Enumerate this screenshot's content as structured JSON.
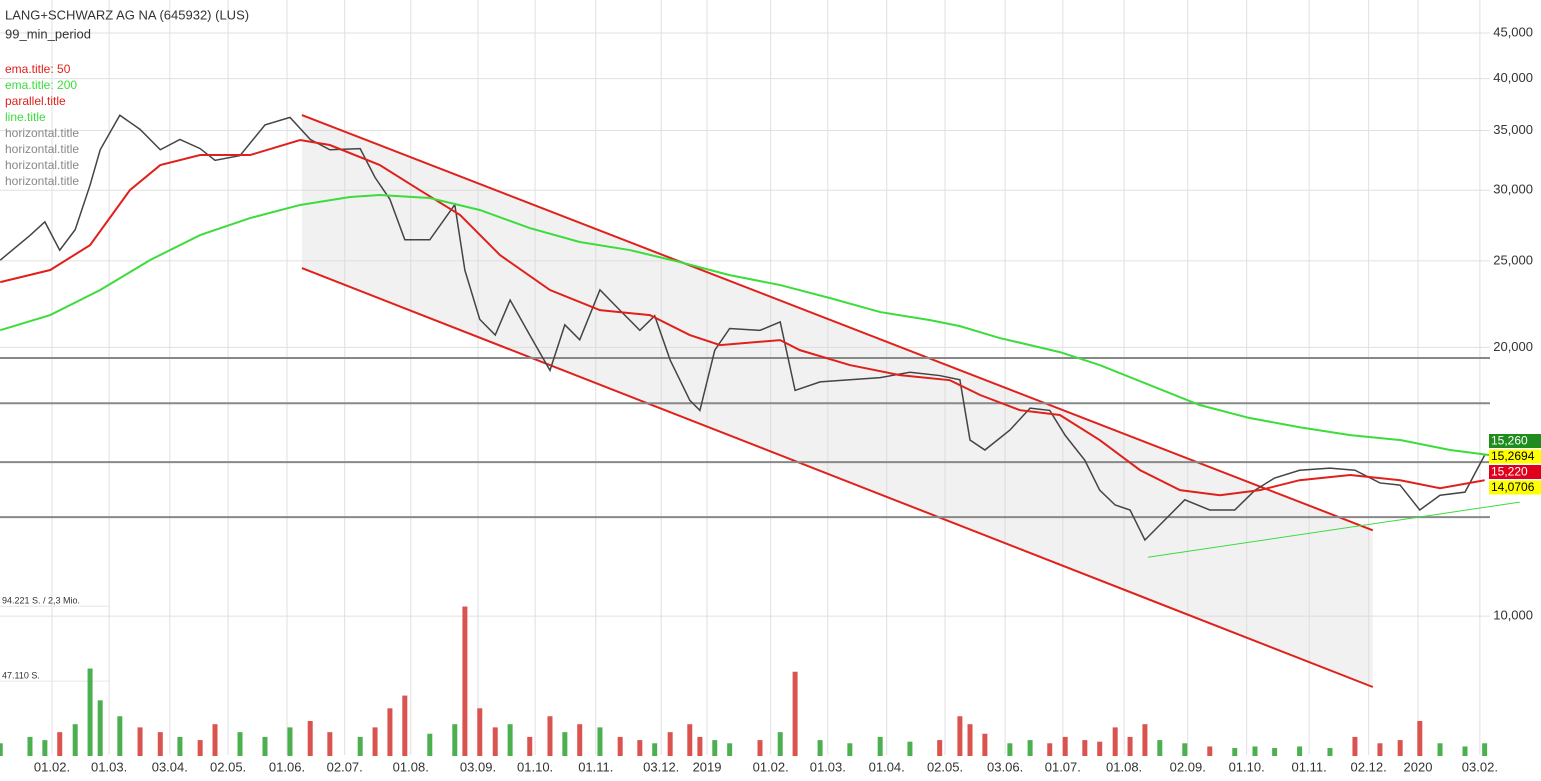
{
  "chart_data": {
    "type": "line",
    "title": "LANG+SCHWARZ AG NA (645932) (LUS)",
    "subtitle": "99_min_period",
    "log": true,
    "grid": true,
    "xlim": [
      0.126,
      25.17
    ],
    "ylim": [
      6990,
      49000
    ],
    "yticks": [
      {
        "value": 10000,
        "label": "10,000"
      },
      {
        "value": 20000,
        "label": "20,000"
      },
      {
        "value": 25000,
        "label": "25,000"
      },
      {
        "value": 30000,
        "label": "30,000"
      },
      {
        "value": 35000,
        "label": "35,000"
      },
      {
        "value": 40000,
        "label": "40,000"
      },
      {
        "value": 45000,
        "label": "45,000"
      }
    ],
    "xticks": [
      {
        "value": 1,
        "label": "01.02."
      },
      {
        "value": 1.96,
        "label": "01.03."
      },
      {
        "value": 2.98,
        "label": "03.04."
      },
      {
        "value": 3.96,
        "label": "02.05."
      },
      {
        "value": 4.95,
        "label": "01.06."
      },
      {
        "value": 5.92,
        "label": "02.07."
      },
      {
        "value": 7.03,
        "label": "01.08."
      },
      {
        "value": 8.16,
        "label": "03.09."
      },
      {
        "value": 9.12,
        "label": "01.10."
      },
      {
        "value": 10.14,
        "label": "01.11."
      },
      {
        "value": 11.24,
        "label": "03.12."
      },
      {
        "value": 12.01,
        "label": "2019"
      },
      {
        "value": 13.08,
        "label": "01.02."
      },
      {
        "value": 14.04,
        "label": "01.03."
      },
      {
        "value": 15.03,
        "label": "01.04."
      },
      {
        "value": 16.01,
        "label": "02.05."
      },
      {
        "value": 17.02,
        "label": "03.06."
      },
      {
        "value": 17.99,
        "label": "01.07."
      },
      {
        "value": 19.02,
        "label": "01.08."
      },
      {
        "value": 20.09,
        "label": "02.09."
      },
      {
        "value": 21.08,
        "label": "01.10."
      },
      {
        "value": 22.13,
        "label": "01.11."
      },
      {
        "value": 23.13,
        "label": "02.12."
      },
      {
        "value": 23.96,
        "label": "2020"
      },
      {
        "value": 25.0,
        "label": "03.02."
      }
    ],
    "price": {
      "color": "#444444",
      "x": [
        0.13,
        0.63,
        0.88,
        1.13,
        1.39,
        1.64,
        1.81,
        2.14,
        2.48,
        2.82,
        3.15,
        3.49,
        3.74,
        4.16,
        4.58,
        5.0,
        5.34,
        5.67,
        6.18,
        6.43,
        6.68,
        6.93,
        7.35,
        7.77,
        7.94,
        8.19,
        8.45,
        8.7,
        9.03,
        9.37,
        9.62,
        9.87,
        10.21,
        10.55,
        10.88,
        11.13,
        11.39,
        11.72,
        11.89,
        12.14,
        12.39,
        12.9,
        13.24,
        13.49,
        13.91,
        14.41,
        14.92,
        15.42,
        15.92,
        16.26,
        16.43,
        16.68,
        17.1,
        17.44,
        17.77,
        18.03,
        18.36,
        18.61,
        18.87,
        19.12,
        19.37,
        19.62,
        20.04,
        20.46,
        20.88,
        21.22,
        21.55,
        21.97,
        22.48,
        22.9,
        23.32,
        23.66,
        23.99,
        24.33,
        24.75,
        25.08
      ],
      "values": [
        25050,
        26700,
        27650,
        25700,
        27100,
        30400,
        33300,
        36400,
        35100,
        33300,
        34200,
        33400,
        32400,
        32800,
        35500,
        36200,
        34200,
        33300,
        33400,
        31000,
        29300,
        26400,
        26400,
        28900,
        24400,
        21500,
        20650,
        22600,
        20650,
        18850,
        21200,
        20400,
        23200,
        22000,
        20900,
        21700,
        19360,
        17450,
        17000,
        19860,
        21000,
        20900,
        21360,
        17900,
        18300,
        18400,
        18500,
        18760,
        18600,
        18400,
        15750,
        15350,
        16160,
        17100,
        17000,
        15940,
        14950,
        13840,
        13320,
        13150,
        12170,
        12650,
        13500,
        13150,
        13150,
        13840,
        14280,
        14570,
        14650,
        14570,
        14100,
        14020,
        13150,
        13660,
        13770,
        15150
      ]
    },
    "volume": {
      "color_up": "#4caf50",
      "color_down": "#d9534f",
      "ylim": [
        0,
        100000
      ],
      "yticks": [
        {
          "value": 94221,
          "label": "94.221 S. / 2,3 Mio."
        },
        {
          "value": 47110,
          "label": "47.110 S."
        }
      ],
      "values": [
        8000,
        12000,
        10000,
        15000,
        20000,
        55000,
        35000,
        25000,
        18000,
        15000,
        12000,
        10000,
        20000,
        15000,
        12000,
        18000,
        22000,
        15000,
        12000,
        18000,
        30000,
        38000,
        14000,
        20000,
        94000,
        30000,
        18000,
        20000,
        12000,
        25000,
        15000,
        20000,
        18000,
        12000,
        10000,
        8000,
        15000,
        20000,
        12000,
        10000,
        8000,
        10000,
        15000,
        53000,
        10000,
        8000,
        12000,
        9000,
        10000,
        25000,
        20000,
        14000,
        8000,
        10000,
        8000,
        12000,
        10000,
        9000,
        18000,
        12000,
        20000,
        10000,
        8000,
        6000,
        5000,
        6000,
        5000,
        6000,
        5000,
        12000,
        8000,
        10000,
        22000,
        8000,
        6000,
        8000
      ]
    },
    "series": [
      {
        "name": "ema.title: 50",
        "color": "#e0201b",
        "x": [
          0.13,
          0.97,
          1.64,
          2.31,
          2.82,
          3.49,
          4.33,
          5.17,
          5.67,
          6.51,
          7.18,
          7.86,
          8.53,
          9.37,
          10.21,
          11.05,
          11.72,
          12.23,
          13.24,
          13.57,
          14.41,
          15.25,
          16.09,
          16.6,
          17.27,
          17.94,
          18.61,
          19.29,
          19.96,
          20.63,
          21.3,
          21.97,
          22.82,
          23.66,
          24.33,
          25.08
        ],
        "values": [
          23670,
          24420,
          26040,
          30010,
          32010,
          32850,
          32850,
          34150,
          33710,
          32010,
          30010,
          28140,
          25380,
          23190,
          22020,
          21740,
          20650,
          20120,
          20380,
          19860,
          19110,
          18620,
          18380,
          17690,
          17010,
          16800,
          15750,
          14570,
          13840,
          13660,
          13840,
          14200,
          14390,
          14200,
          13910,
          14200
        ]
      },
      {
        "name": "ema.title: 200",
        "color": "#3cdc3c",
        "x": [
          0.13,
          0.97,
          1.81,
          2.65,
          3.49,
          4.33,
          5.17,
          6.01,
          6.51,
          7.35,
          8.19,
          9.03,
          9.87,
          10.71,
          11.55,
          12.39,
          13.24,
          14.08,
          14.92,
          15.76,
          16.26,
          16.93,
          17.94,
          18.61,
          19.45,
          20.29,
          21.13,
          21.97,
          22.82,
          23.66,
          24.5,
          25.17
        ],
        "values": [
          20910,
          21740,
          23190,
          25060,
          26720,
          27920,
          28880,
          29480,
          29630,
          29400,
          28510,
          27210,
          26250,
          25710,
          24930,
          24100,
          23490,
          22710,
          21910,
          21460,
          21130,
          20490,
          19760,
          19110,
          18150,
          17240,
          16670,
          16280,
          15950,
          15750,
          15350,
          15150
        ]
      }
    ],
    "channel": {
      "name": "parallel.title",
      "color": "#e0201b",
      "x": [
        5.2,
        23.2
      ],
      "upper": [
        36420,
        12480
      ],
      "lower": [
        24540,
        8330
      ]
    },
    "trendline": {
      "name": "line.title",
      "color": "#3cdc3c",
      "x": [
        19.42,
        25.67
      ],
      "values": [
        11640,
        13420
      ]
    },
    "horizontals": [
      {
        "name": "horizontal.title",
        "color": "#888888",
        "value": 19460
      },
      {
        "name": "horizontal.title",
        "color": "#888888",
        "value": 17320
      },
      {
        "name": "horizontal.title",
        "color": "#888888",
        "value": 14880
      },
      {
        "name": "horizontal.title",
        "color": "#888888",
        "value": 12910
      }
    ],
    "last_labels": [
      {
        "label": "15,260",
        "color": "#1e8c1e",
        "text_color": "#ffffff"
      },
      {
        "label": "15,2694",
        "color": "#ffff00",
        "text_color": "#000000"
      },
      {
        "label": "15,220",
        "color": "#e0001b",
        "text_color": "#ffffff"
      },
      {
        "label": "14,0706",
        "color": "#ffff00",
        "text_color": "#000000"
      }
    ]
  }
}
